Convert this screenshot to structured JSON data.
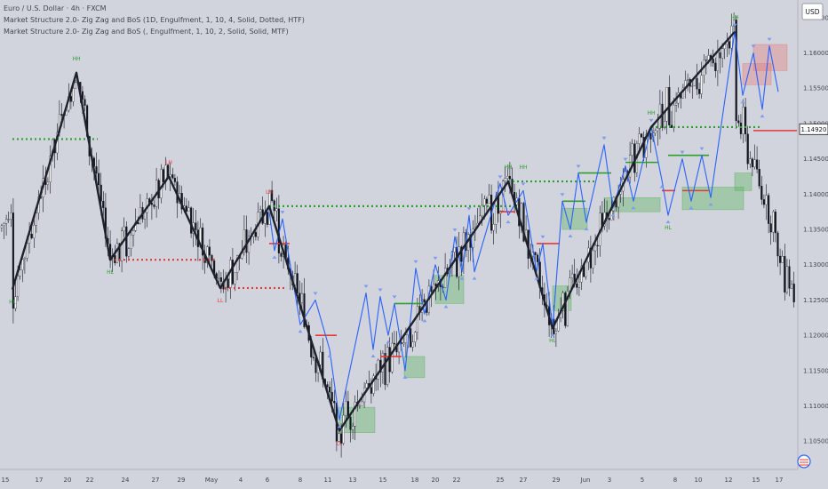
{
  "header": {
    "symbol_line": "Euro / U.S. Dollar · 4h · FXCM",
    "indicators": [
      "Market Structure 2.0- Zig Zag and BoS (1D, Engulfment, 1, 10, 4, Solid, Dotted, HTF)",
      "Market Structure 2.0- Zig Zag and BoS (, Engulfment, 1, 10, 2, Solid, Solid, MTF)"
    ]
  },
  "currency_button": "USD",
  "last_price": "1.14920",
  "colors": {
    "bull": "#ffffff",
    "bear": "#131722",
    "zigzag_htf": "#1e222d",
    "zigzag_mtf": "#2962ff",
    "bos_bull": "#2e9e2e",
    "bos_bear": "#e53935",
    "demand_zone": "#4caf50",
    "supply_zone": "#e57373",
    "price_label_bg": "#ffffff"
  },
  "chart_data": {
    "type": "candlestick",
    "y_axis": {
      "range": [
        1.101,
        1.1675
      ],
      "ticks": [
        "1.10500",
        "1.11000",
        "1.11500",
        "1.12000",
        "1.12500",
        "1.13000",
        "1.13500",
        "1.14000",
        "1.14500",
        "1.15000",
        "1.15500",
        "1.16000",
        "1.16500"
      ]
    },
    "x_axis": {
      "ticks": [
        "15",
        "17",
        "20",
        "22",
        "24",
        "27",
        "29",
        "May",
        "4",
        "6",
        "8",
        "11",
        "13",
        "15",
        "18",
        "20",
        "22",
        "25",
        "27",
        "29",
        "Jun",
        "3",
        "5",
        "8",
        "10",
        "12",
        "15",
        "17"
      ]
    },
    "htf_zigzag": [
      {
        "d": "Apr 15",
        "p": 1.1265
      },
      {
        "d": "Apr 21",
        "p": 1.1572
      },
      {
        "d": "Apr 23",
        "p": 1.1307
      },
      {
        "d": "Apr 28",
        "p": 1.1425
      },
      {
        "d": "May 1",
        "p": 1.1267
      },
      {
        "d": "May 6",
        "p": 1.1383
      },
      {
        "d": "May 12",
        "p": 1.1065
      },
      {
        "d": "May 26",
        "p": 1.1418
      },
      {
        "d": "May 29",
        "p": 1.121
      },
      {
        "d": "Jun 5",
        "p": 1.1495
      },
      {
        "d": "Jun 11",
        "p": 1.163
      }
    ],
    "mtf_zigzag": [
      {
        "d": "May 6",
        "p": 1.1375
      },
      {
        "d": "May 6b",
        "p": 1.132
      },
      {
        "d": "May 7",
        "p": 1.1365
      },
      {
        "d": "May 8",
        "p": 1.1215
      },
      {
        "d": "May 9",
        "p": 1.125
      },
      {
        "d": "May 10",
        "p": 1.118
      },
      {
        "d": "May 12",
        "p": 1.108
      },
      {
        "d": "May 14",
        "p": 1.126
      },
      {
        "d": "May 14b",
        "p": 1.118
      },
      {
        "d": "May 15",
        "p": 1.1255
      },
      {
        "d": "May 15b",
        "p": 1.12
      },
      {
        "d": "May 16",
        "p": 1.1245
      },
      {
        "d": "May 16b",
        "p": 1.115
      },
      {
        "d": "May 18",
        "p": 1.1295
      },
      {
        "d": "May 19",
        "p": 1.123
      },
      {
        "d": "May 20",
        "p": 1.13
      },
      {
        "d": "May 21",
        "p": 1.125
      },
      {
        "d": "May 22",
        "p": 1.134
      },
      {
        "d": "May 22b",
        "p": 1.129
      },
      {
        "d": "May 23",
        "p": 1.137
      },
      {
        "d": "May 23b",
        "p": 1.129
      },
      {
        "d": "May 25",
        "p": 1.1415
      },
      {
        "d": "May 26",
        "p": 1.137
      },
      {
        "d": "May 27",
        "p": 1.1405
      },
      {
        "d": "May 28",
        "p": 1.129
      },
      {
        "d": "May 28b",
        "p": 1.133
      },
      {
        "d": "May 29",
        "p": 1.121
      },
      {
        "d": "Jun 1",
        "p": 1.139
      },
      {
        "d": "Jun 1b",
        "p": 1.135
      },
      {
        "d": "Jun 2",
        "p": 1.143
      },
      {
        "d": "Jun 2b",
        "p": 1.136
      },
      {
        "d": "Jun 3",
        "p": 1.147
      },
      {
        "d": "Jun 3b",
        "p": 1.138
      },
      {
        "d": "Jun 4",
        "p": 1.144
      },
      {
        "d": "Jun 4b",
        "p": 1.139
      },
      {
        "d": "Jun 5",
        "p": 1.1495
      },
      {
        "d": "Jun 6",
        "p": 1.142
      },
      {
        "d": "Jun 8",
        "p": 1.137
      },
      {
        "d": "Jun 9",
        "p": 1.145
      },
      {
        "d": "Jun 9b",
        "p": 1.139
      },
      {
        "d": "Jun 10",
        "p": 1.1455
      },
      {
        "d": "Jun 10b",
        "p": 1.1395
      },
      {
        "d": "Jun 11",
        "p": 1.163
      },
      {
        "d": "Jun 12",
        "p": 1.154
      },
      {
        "d": "Jun 13",
        "p": 1.16
      },
      {
        "d": "Jun 14",
        "p": 1.152
      },
      {
        "d": "Jun 15",
        "p": 1.161
      },
      {
        "d": "Jun 16",
        "p": 1.1545
      }
    ],
    "bos_lines": [
      {
        "from": "Apr 15",
        "to": "Apr 19",
        "p": 1.1478,
        "style": "dotted",
        "color": "bos_bull"
      },
      {
        "from": "Apr 23",
        "to": "Apr 30",
        "p": 1.1307,
        "style": "dotted",
        "color": "bos_bear"
      },
      {
        "from": "May 1",
        "to": "May 6",
        "p": 1.1267,
        "style": "dotted",
        "color": "bos_bear"
      },
      {
        "from": "May 6",
        "to": "May 25",
        "p": 1.1383,
        "style": "dotted",
        "color": "bos_bull"
      },
      {
        "from": "May 26",
        "to": "Jun 2",
        "p": 1.1418,
        "style": "dotted",
        "color": "bos_bull"
      },
      {
        "from": "Jun 5",
        "to": "Jun 12",
        "p": 1.1495,
        "style": "dotted",
        "color": "bos_bull"
      },
      {
        "from": "May 6",
        "to": "May 7",
        "p": 1.133,
        "style": "solid",
        "color": "bos_bear"
      },
      {
        "from": "May 9",
        "to": "May 10",
        "p": 1.12,
        "style": "solid",
        "color": "bos_bear"
      },
      {
        "from": "May 15",
        "to": "May 16",
        "p": 1.117,
        "style": "solid",
        "color": "bos_bear"
      },
      {
        "from": "May 16",
        "to": "May 18",
        "p": 1.1245,
        "style": "solid",
        "color": "bos_bull"
      },
      {
        "from": "May 25",
        "to": "May 26",
        "p": 1.1375,
        "style": "solid",
        "color": "bos_bear"
      },
      {
        "from": "May 28",
        "to": "May 29",
        "p": 1.133,
        "style": "solid",
        "color": "bos_bear"
      },
      {
        "from": "Jun 1",
        "to": "Jun 2",
        "p": 1.139,
        "style": "solid",
        "color": "bos_bull"
      },
      {
        "from": "Jun 2",
        "to": "Jun 3",
        "p": 1.143,
        "style": "solid",
        "color": "bos_bull"
      },
      {
        "from": "Jun 4",
        "to": "Jun 5",
        "p": 1.1445,
        "style": "solid",
        "color": "bos_bull"
      },
      {
        "from": "Jun 6",
        "to": "Jun 8",
        "p": 1.1405,
        "style": "solid",
        "color": "bos_bear"
      },
      {
        "from": "Jun 8",
        "to": "Jun 10",
        "p": 1.1455,
        "style": "solid",
        "color": "bos_bull"
      },
      {
        "from": "Jun 9",
        "to": "Jun 10",
        "p": 1.1405,
        "style": "solid",
        "color": "bos_bear"
      },
      {
        "from": "Jun 13",
        "to": "Jun 17",
        "p": 1.149,
        "style": "solid",
        "color": "bos_bear"
      }
    ],
    "zones": [
      {
        "from": "May 12",
        "to": "May 14",
        "top": 1.1098,
        "bottom": 1.1062,
        "kind": "demand_zone"
      },
      {
        "from": "May 17",
        "to": "May 18",
        "top": 1.117,
        "bottom": 1.114,
        "kind": "demand_zone"
      },
      {
        "from": "May 20",
        "to": "May 22",
        "top": 1.1285,
        "bottom": 1.1245,
        "kind": "demand_zone"
      },
      {
        "from": "May 29",
        "to": "Jun 1",
        "top": 1.127,
        "bottom": 1.1235,
        "kind": "demand_zone"
      },
      {
        "from": "Jun 1",
        "to": "Jun 2",
        "top": 1.138,
        "bottom": 1.135,
        "kind": "demand_zone"
      },
      {
        "from": "Jun 3",
        "to": "Jun 5",
        "top": 1.1395,
        "bottom": 1.1375,
        "kind": "demand_zone"
      },
      {
        "from": "Jun 9",
        "to": "Jun 11",
        "top": 1.141,
        "bottom": 1.1378,
        "kind": "demand_zone"
      },
      {
        "from": "Jun 11",
        "to": "Jun 12",
        "top": 1.143,
        "bottom": 1.1405,
        "kind": "demand_zone"
      },
      {
        "from": "Jun 13",
        "to": "Jun 16",
        "top": 1.1612,
        "bottom": 1.1575,
        "kind": "supply_zone"
      },
      {
        "from": "Jun 12",
        "to": "Jun 14",
        "top": 1.1585,
        "bottom": 1.1555,
        "kind": "supply_zone"
      }
    ],
    "structure_labels": [
      {
        "text": "HL",
        "d": "Apr 15",
        "p": 1.1265,
        "pos": "below",
        "color": "bos_bull"
      },
      {
        "text": "HH",
        "d": "Apr 21",
        "p": 1.1572,
        "pos": "above",
        "color": "bos_bull"
      },
      {
        "text": "HL",
        "d": "Apr 23",
        "p": 1.1307,
        "pos": "below",
        "color": "bos_bull"
      },
      {
        "text": "LH",
        "d": "Apr 28",
        "p": 1.1425,
        "pos": "above",
        "color": "bos_bear"
      },
      {
        "text": "LL",
        "d": "May 1",
        "p": 1.1267,
        "pos": "below",
        "color": "bos_bear"
      },
      {
        "text": "LH",
        "d": "May 6",
        "p": 1.1383,
        "pos": "above",
        "color": "bos_bear"
      },
      {
        "text": "LL",
        "d": "May 12",
        "p": 1.1065,
        "pos": "below",
        "color": "bos_bear"
      },
      {
        "text": "HH",
        "d": "May 26",
        "p": 1.1418,
        "pos": "above",
        "color": "bos_bull"
      },
      {
        "text": "HH",
        "d": "May 27",
        "p": 1.1418,
        "pos": "above",
        "color": "bos_bull"
      },
      {
        "text": "HL",
        "d": "May 29",
        "p": 1.121,
        "pos": "below",
        "color": "bos_bull"
      },
      {
        "text": "HH",
        "d": "Jun 5",
        "p": 1.1495,
        "pos": "above",
        "color": "bos_bull"
      },
      {
        "text": "HL",
        "d": "Jun 8",
        "p": 1.137,
        "pos": "below",
        "color": "bos_bull"
      },
      {
        "text": "HH",
        "d": "Jun 11",
        "p": 1.163,
        "pos": "above",
        "color": "bos_bull"
      }
    ]
  }
}
